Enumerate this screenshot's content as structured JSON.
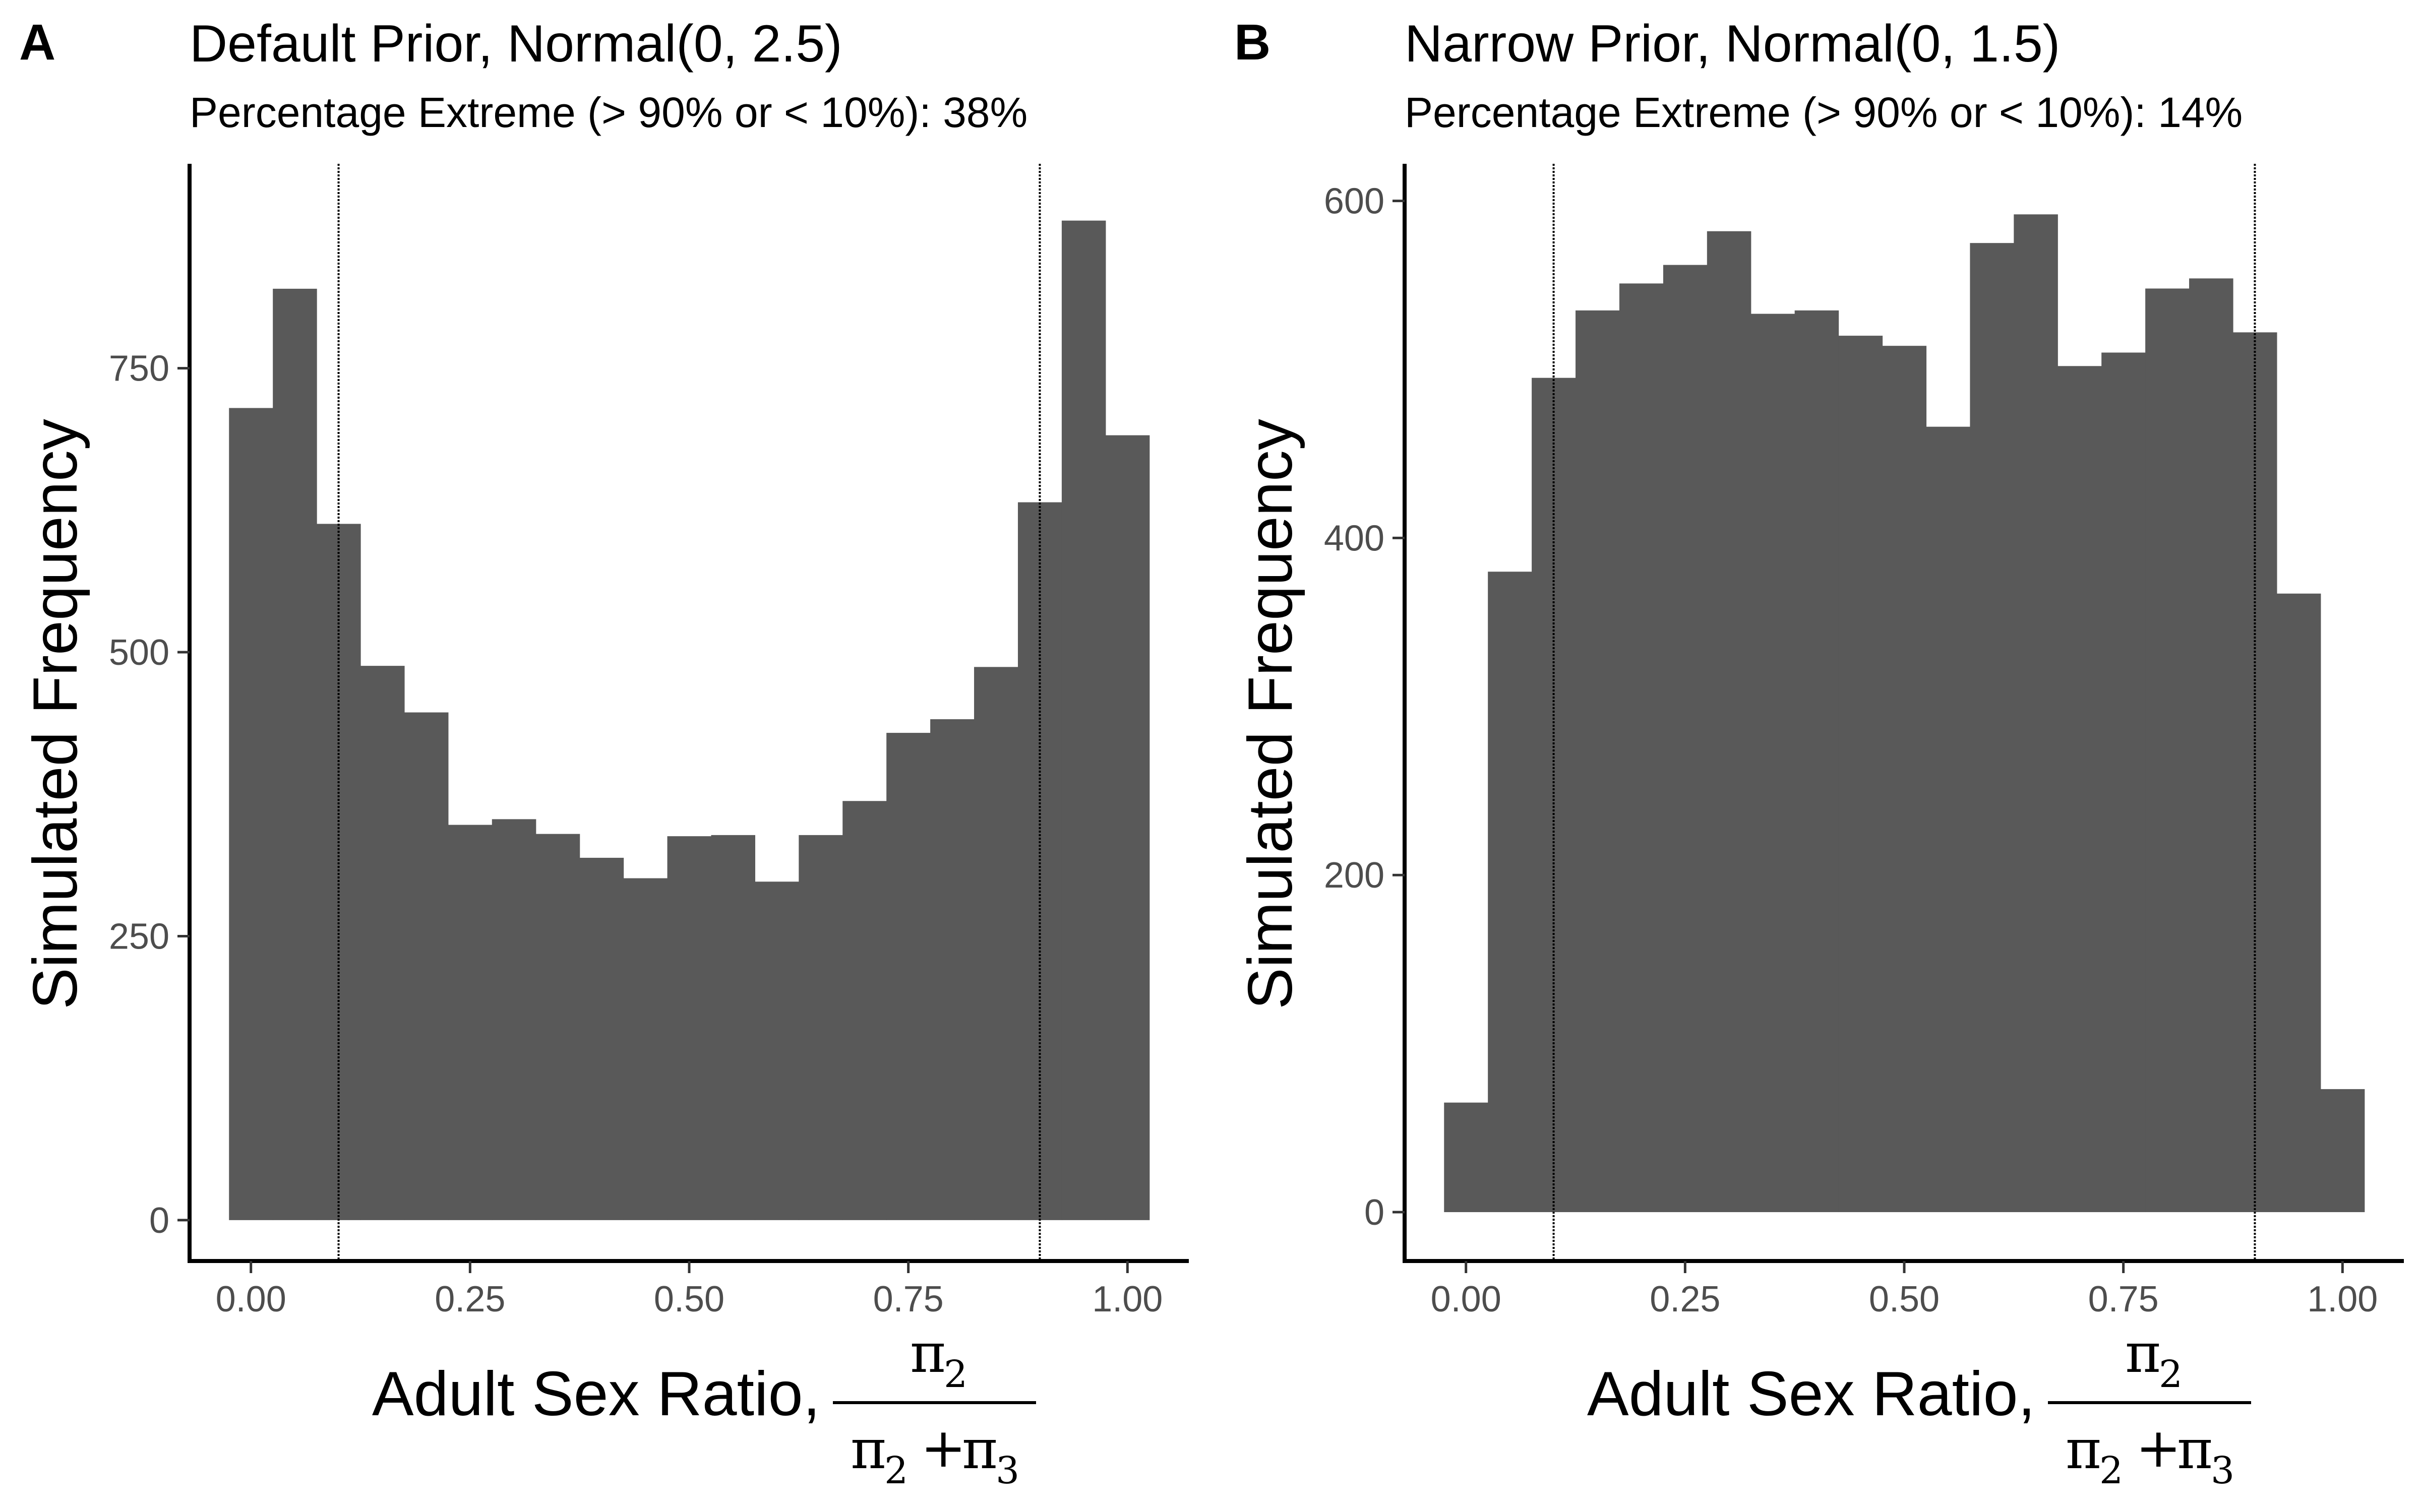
{
  "panels": [
    {
      "letter": "A",
      "title": "Default Prior, Normal(0, 2.5)",
      "subtitle": "Percentage Extreme (> 90% or < 10%): 38%",
      "ylabel": "Simulated Frequency",
      "xlabel": "Adult Sex Ratio,",
      "xlabel_fraction": {
        "numerator": "π",
        "numerator_sub": "2",
        "denominator_left": "π",
        "denominator_left_sub": "2",
        "denominator_op": "+",
        "denominator_right": "π",
        "denominator_right_sub": "3"
      }
    },
    {
      "letter": "B",
      "title": "Narrow Prior, Normal(0, 1.5)",
      "subtitle": "Percentage Extreme (> 90% or < 10%): 14%",
      "ylabel": "Simulated Frequency",
      "xlabel": "Adult Sex Ratio,",
      "xlabel_fraction": {
        "numerator": "π",
        "numerator_sub": "2",
        "denominator_left": "π",
        "denominator_left_sub": "2",
        "denominator_op": "+",
        "denominator_right": "π",
        "denominator_right_sub": "3"
      }
    }
  ],
  "chart_data": [
    {
      "type": "bar",
      "title": "Default Prior, Normal(0, 2.5)",
      "subtitle": "Percentage Extreme (> 90% or < 10%): 38%",
      "xlabel": "Adult Sex Ratio, π2 / (π2 + π3)",
      "ylabel": "Simulated Frequency",
      "bin_width": 0.05,
      "bin_centers": [
        0.0,
        0.05,
        0.1,
        0.15,
        0.2,
        0.25,
        0.3,
        0.35,
        0.4,
        0.45,
        0.5,
        0.55,
        0.6,
        0.65,
        0.7,
        0.75,
        0.8,
        0.85,
        0.9,
        0.95,
        1.0
      ],
      "values": [
        715,
        820,
        613,
        488,
        447,
        348,
        353,
        340,
        319,
        301,
        338,
        339,
        298,
        339,
        369,
        429,
        441,
        487,
        632,
        880,
        691
      ],
      "xlim": [
        -0.07,
        1.07
      ],
      "ylim": [
        -36,
        930
      ],
      "xticks": [
        0.0,
        0.25,
        0.5,
        0.75,
        1.0
      ],
      "xtick_labels": [
        "0.00",
        "0.25",
        "0.50",
        "0.75",
        "1.00"
      ],
      "yticks": [
        0,
        250,
        500,
        750
      ],
      "ytick_labels": [
        "0",
        "250",
        "500",
        "750"
      ],
      "vlines": [
        0.1,
        0.9
      ],
      "grid": false,
      "bar_color": "#595959"
    },
    {
      "type": "bar",
      "title": "Narrow Prior, Normal(0, 1.5)",
      "subtitle": "Percentage Extreme (> 90% or < 10%): 14%",
      "xlabel": "Adult Sex Ratio, π2 / (π2 + π3)",
      "ylabel": "Simulated Frequency",
      "bin_width": 0.05,
      "bin_centers": [
        0.0,
        0.05,
        0.1,
        0.15,
        0.2,
        0.25,
        0.3,
        0.35,
        0.4,
        0.45,
        0.5,
        0.55,
        0.6,
        0.65,
        0.7,
        0.75,
        0.8,
        0.85,
        0.9,
        0.95,
        1.0
      ],
      "values": [
        65,
        380,
        495,
        535,
        551,
        562,
        582,
        533,
        535,
        520,
        514,
        466,
        575,
        592,
        502,
        510,
        548,
        554,
        522,
        367,
        73
      ],
      "xlim": [
        -0.07,
        1.07
      ],
      "ylim": [
        -29,
        622
      ],
      "xticks": [
        0.0,
        0.25,
        0.5,
        0.75,
        1.0
      ],
      "xtick_labels": [
        "0.00",
        "0.25",
        "0.50",
        "0.75",
        "1.00"
      ],
      "yticks": [
        0,
        200,
        400,
        600
      ],
      "ytick_labels": [
        "0",
        "200",
        "400",
        "600"
      ],
      "vlines": [
        0.1,
        0.9
      ],
      "grid": false,
      "bar_color": "#595959"
    }
  ]
}
